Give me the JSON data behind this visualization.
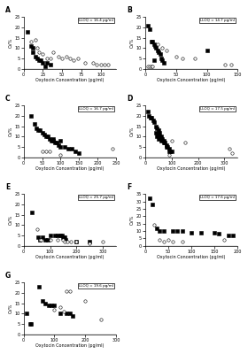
{
  "subplots": [
    {
      "label": "A",
      "lloq": "LLOQ = 16.4 pg/ml",
      "xmax": 120,
      "xticks": [
        0,
        25,
        50,
        75,
        100
      ],
      "ymax": 25,
      "yticks": [
        0,
        5,
        10,
        15,
        20,
        25
      ],
      "filled": [
        [
          5,
          18
        ],
        [
          10,
          11
        ],
        [
          12,
          8
        ],
        [
          15,
          6
        ],
        [
          18,
          5
        ],
        [
          20,
          4
        ],
        [
          22,
          4
        ],
        [
          25,
          3
        ],
        [
          28,
          1
        ],
        [
          30,
          3
        ],
        [
          35,
          2
        ],
        [
          12,
          10
        ]
      ],
      "open": [
        [
          10,
          13
        ],
        [
          15,
          14
        ],
        [
          18,
          10
        ],
        [
          20,
          8
        ],
        [
          25,
          7
        ],
        [
          30,
          5
        ],
        [
          35,
          5
        ],
        [
          38,
          8
        ],
        [
          45,
          6
        ],
        [
          50,
          5
        ],
        [
          55,
          6
        ],
        [
          60,
          5
        ],
        [
          65,
          4
        ],
        [
          70,
          5
        ],
        [
          80,
          3
        ],
        [
          90,
          3
        ],
        [
          95,
          2
        ],
        [
          100,
          2
        ],
        [
          105,
          2
        ],
        [
          110,
          2
        ]
      ]
    },
    {
      "label": "B",
      "lloq": "LLOQ = 14.7 pg/ml",
      "xmax": 150,
      "xticks": [
        0,
        50,
        100,
        150
      ],
      "ymax": 25,
      "yticks": [
        0,
        5,
        10,
        15,
        20,
        25
      ],
      "filled": [
        [
          5,
          21
        ],
        [
          8,
          19
        ],
        [
          10,
          13
        ],
        [
          12,
          13
        ],
        [
          15,
          12
        ],
        [
          16,
          11
        ],
        [
          18,
          10
        ],
        [
          20,
          9
        ],
        [
          22,
          8
        ],
        [
          24,
          7
        ],
        [
          26,
          5
        ],
        [
          28,
          4
        ],
        [
          30,
          3
        ],
        [
          15,
          4
        ],
        [
          100,
          9
        ]
      ],
      "open": [
        [
          5,
          1
        ],
        [
          8,
          1
        ],
        [
          10,
          1
        ],
        [
          12,
          1
        ],
        [
          20,
          12
        ],
        [
          28,
          10
        ],
        [
          35,
          9
        ],
        [
          50,
          6
        ],
        [
          60,
          5
        ],
        [
          80,
          5
        ],
        [
          130,
          2
        ],
        [
          140,
          2
        ]
      ]
    },
    {
      "label": "C",
      "lloq": "LLOQ = 16.7 pg/ml",
      "xmax": 250,
      "xticks": [
        0,
        50,
        100,
        150,
        200,
        250
      ],
      "ymax": 25,
      "yticks": [
        0,
        5,
        10,
        15,
        20,
        25
      ],
      "filled": [
        [
          20,
          20
        ],
        [
          30,
          16
        ],
        [
          35,
          14
        ],
        [
          40,
          13
        ],
        [
          45,
          13
        ],
        [
          50,
          12
        ],
        [
          55,
          11
        ],
        [
          60,
          10
        ],
        [
          65,
          10
        ],
        [
          70,
          9
        ],
        [
          75,
          8
        ],
        [
          80,
          8
        ],
        [
          85,
          7
        ],
        [
          90,
          7
        ],
        [
          95,
          6
        ],
        [
          100,
          5
        ],
        [
          110,
          5
        ],
        [
          120,
          4
        ],
        [
          130,
          4
        ],
        [
          140,
          3
        ],
        [
          150,
          2
        ],
        [
          100,
          8
        ],
        [
          80,
          9
        ]
      ],
      "open": [
        [
          50,
          3
        ],
        [
          60,
          3
        ],
        [
          70,
          3
        ],
        [
          100,
          1
        ],
        [
          240,
          4
        ]
      ]
    },
    {
      "label": "D",
      "lloq": "LLOQ = 17.5 pg/ml",
      "xmax": 350,
      "xticks": [
        0,
        100,
        200,
        300
      ],
      "ymax": 25,
      "yticks": [
        0,
        5,
        10,
        15,
        20,
        25
      ],
      "filled": [
        [
          10,
          22
        ],
        [
          15,
          20
        ],
        [
          20,
          19
        ],
        [
          25,
          19
        ],
        [
          30,
          18
        ],
        [
          35,
          17
        ],
        [
          40,
          15
        ],
        [
          45,
          14
        ],
        [
          50,
          13
        ],
        [
          55,
          12
        ],
        [
          50,
          11
        ],
        [
          55,
          10
        ],
        [
          60,
          10
        ],
        [
          60,
          9
        ],
        [
          65,
          9
        ],
        [
          70,
          8
        ],
        [
          70,
          7
        ],
        [
          75,
          7
        ],
        [
          80,
          6
        ],
        [
          80,
          5
        ],
        [
          85,
          5
        ],
        [
          90,
          4
        ],
        [
          90,
          3
        ],
        [
          95,
          3
        ],
        [
          100,
          3
        ],
        [
          50,
          9
        ],
        [
          60,
          8
        ],
        [
          40,
          12
        ],
        [
          45,
          10
        ]
      ],
      "open": [
        [
          90,
          1
        ],
        [
          100,
          8
        ],
        [
          150,
          7
        ],
        [
          320,
          4
        ],
        [
          330,
          2
        ]
      ]
    },
    {
      "label": "E",
      "lloq": "LLOQ = 25.7 pg/ml",
      "xmax": 350,
      "xticks": [
        0,
        100,
        200,
        300
      ],
      "ymax": 25,
      "yticks": [
        0,
        5,
        10,
        15,
        20,
        25
      ],
      "filled": [
        [
          30,
          16
        ],
        [
          55,
          4
        ],
        [
          60,
          3
        ],
        [
          70,
          4
        ],
        [
          80,
          3
        ],
        [
          90,
          3
        ],
        [
          100,
          5
        ],
        [
          120,
          5
        ],
        [
          130,
          5
        ],
        [
          140,
          5
        ],
        [
          145,
          5
        ],
        [
          150,
          4
        ],
        [
          155,
          4
        ],
        [
          160,
          3
        ],
        [
          200,
          2
        ],
        [
          250,
          2
        ]
      ],
      "open": [
        [
          50,
          8
        ],
        [
          60,
          3
        ],
        [
          65,
          3
        ],
        [
          100,
          3
        ],
        [
          130,
          3
        ],
        [
          150,
          3
        ],
        [
          155,
          2
        ],
        [
          165,
          2
        ],
        [
          180,
          2
        ],
        [
          200,
          2
        ],
        [
          250,
          1
        ],
        [
          300,
          2
        ]
      ]
    },
    {
      "label": "F",
      "lloq": "LLOQ = 17.6 pg/ml",
      "xmax": 200,
      "xticks": [
        0,
        50,
        100,
        150,
        200
      ],
      "ymax": 35,
      "yticks": [
        0,
        5,
        10,
        15,
        20,
        25,
        30,
        35
      ],
      "filled": [
        [
          10,
          32
        ],
        [
          15,
          28
        ],
        [
          25,
          12
        ],
        [
          30,
          10
        ],
        [
          40,
          10
        ],
        [
          60,
          10
        ],
        [
          70,
          10
        ],
        [
          80,
          10
        ],
        [
          100,
          9
        ],
        [
          120,
          9
        ],
        [
          150,
          9
        ],
        [
          160,
          8
        ],
        [
          180,
          7
        ],
        [
          190,
          7
        ]
      ],
      "open": [
        [
          20,
          14
        ],
        [
          30,
          4
        ],
        [
          40,
          3
        ],
        [
          50,
          4
        ],
        [
          60,
          3
        ],
        [
          80,
          3
        ],
        [
          170,
          4
        ]
      ]
    },
    {
      "label": "G",
      "lloq": "LLOQ = 19.6 pg/ml",
      "xmax": 300,
      "xticks": [
        0,
        100,
        200,
        300
      ],
      "ymax": 25,
      "yticks": [
        0,
        5,
        10,
        15,
        20,
        25
      ],
      "filled": [
        [
          10,
          10
        ],
        [
          20,
          5
        ],
        [
          25,
          5
        ],
        [
          50,
          23
        ],
        [
          60,
          16
        ],
        [
          70,
          15
        ],
        [
          80,
          14
        ],
        [
          90,
          14
        ],
        [
          100,
          14
        ],
        [
          120,
          10
        ],
        [
          140,
          10
        ],
        [
          150,
          10
        ],
        [
          160,
          9
        ]
      ],
      "open": [
        [
          100,
          12
        ],
        [
          120,
          13
        ],
        [
          130,
          11
        ],
        [
          140,
          21
        ],
        [
          150,
          21
        ],
        [
          200,
          16
        ],
        [
          250,
          7
        ]
      ]
    }
  ],
  "xlabel": "Oxytocin Concentration (pg/ml)",
  "ylabel": "CV%",
  "bg_color": "#ffffff",
  "filled_color": "#000000",
  "open_color": "#ffffff",
  "open_edge": "#000000"
}
